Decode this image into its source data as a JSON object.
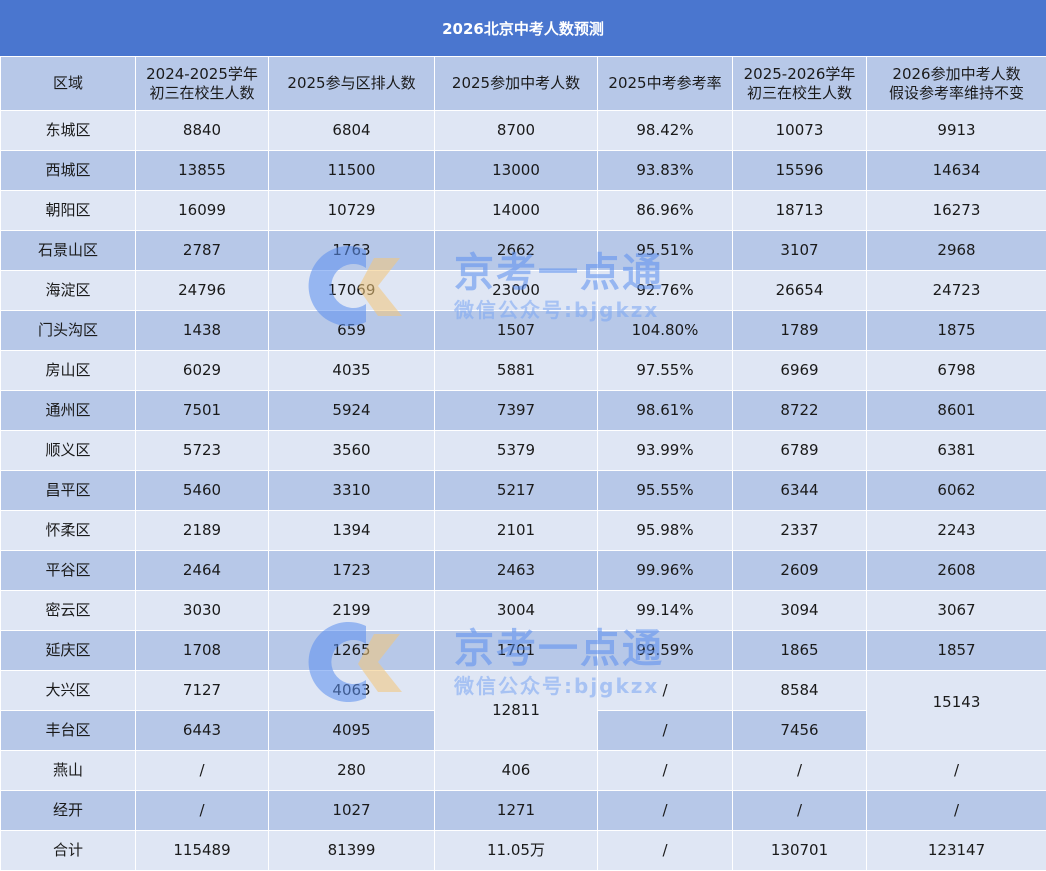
{
  "title": "2026北京中考人数预测",
  "headers": [
    [
      "区域"
    ],
    [
      "2024-2025学年",
      "初三在校生人数"
    ],
    [
      "2025参与区排人数"
    ],
    [
      "2025参加中考人数"
    ],
    [
      "2025中考参考率"
    ],
    [
      "2025-2026学年",
      "初三在校生人数"
    ],
    [
      "2026参加中考人数",
      "假设参考率维持不变"
    ]
  ],
  "rows": [
    [
      "东城区",
      "8840",
      "6804",
      "8700",
      "98.42%",
      "10073",
      "9913"
    ],
    [
      "西城区",
      "13855",
      "11500",
      "13000",
      "93.83%",
      "15596",
      "14634"
    ],
    [
      "朝阳区",
      "16099",
      "10729",
      "14000",
      "86.96%",
      "18713",
      "16273"
    ],
    [
      "石景山区",
      "2787",
      "1763",
      "2662",
      "95.51%",
      "3107",
      "2968"
    ],
    [
      "海淀区",
      "24796",
      "17069",
      "23000",
      "92.76%",
      "26654",
      "24723"
    ],
    [
      "门头沟区",
      "1438",
      "659",
      "1507",
      "104.80%",
      "1789",
      "1875"
    ],
    [
      "房山区",
      "6029",
      "4035",
      "5881",
      "97.55%",
      "6969",
      "6798"
    ],
    [
      "通州区",
      "7501",
      "5924",
      "7397",
      "98.61%",
      "8722",
      "8601"
    ],
    [
      "顺义区",
      "5723",
      "3560",
      "5379",
      "93.99%",
      "6789",
      "6381"
    ],
    [
      "昌平区",
      "5460",
      "3310",
      "5217",
      "95.55%",
      "6344",
      "6062"
    ],
    [
      "怀柔区",
      "2189",
      "1394",
      "2101",
      "95.98%",
      "2337",
      "2243"
    ],
    [
      "平谷区",
      "2464",
      "1723",
      "2463",
      "99.96%",
      "2609",
      "2608"
    ],
    [
      "密云区",
      "3030",
      "2199",
      "3004",
      "99.14%",
      "3094",
      "3067"
    ],
    [
      "延庆区",
      "1708",
      "1265",
      "1701",
      "99.59%",
      "1865",
      "1857"
    ]
  ],
  "merged": {
    "daxing": {
      "name": "大兴区",
      "c1": "7127",
      "c2": "4063",
      "rate": "/",
      "c5": "8584",
      "c6": "15143"
    },
    "fengtai": {
      "name": "丰台区",
      "c1": "6443",
      "c2": "4095",
      "rate": "/",
      "c5": "7456"
    },
    "shared_c3": "12811"
  },
  "tail_rows": [
    [
      "燕山",
      "/",
      "280",
      "406",
      "/",
      "/",
      "/"
    ],
    [
      "经开",
      "/",
      "1027",
      "1271",
      "/",
      "/",
      "/"
    ],
    [
      "合计",
      "115489",
      "81399",
      "11.05万",
      "/",
      "130701",
      "123147"
    ]
  ],
  "watermark": {
    "brand": "京考一点通",
    "sub": "微信公众号:bjgkzx"
  },
  "colors": {
    "title_bg": "#4a76cf",
    "row_light": "#dfe6f4",
    "row_mid": "#b7c8e8",
    "watermark": "#5b8ff0",
    "logo_accent": "#f3c77a"
  }
}
